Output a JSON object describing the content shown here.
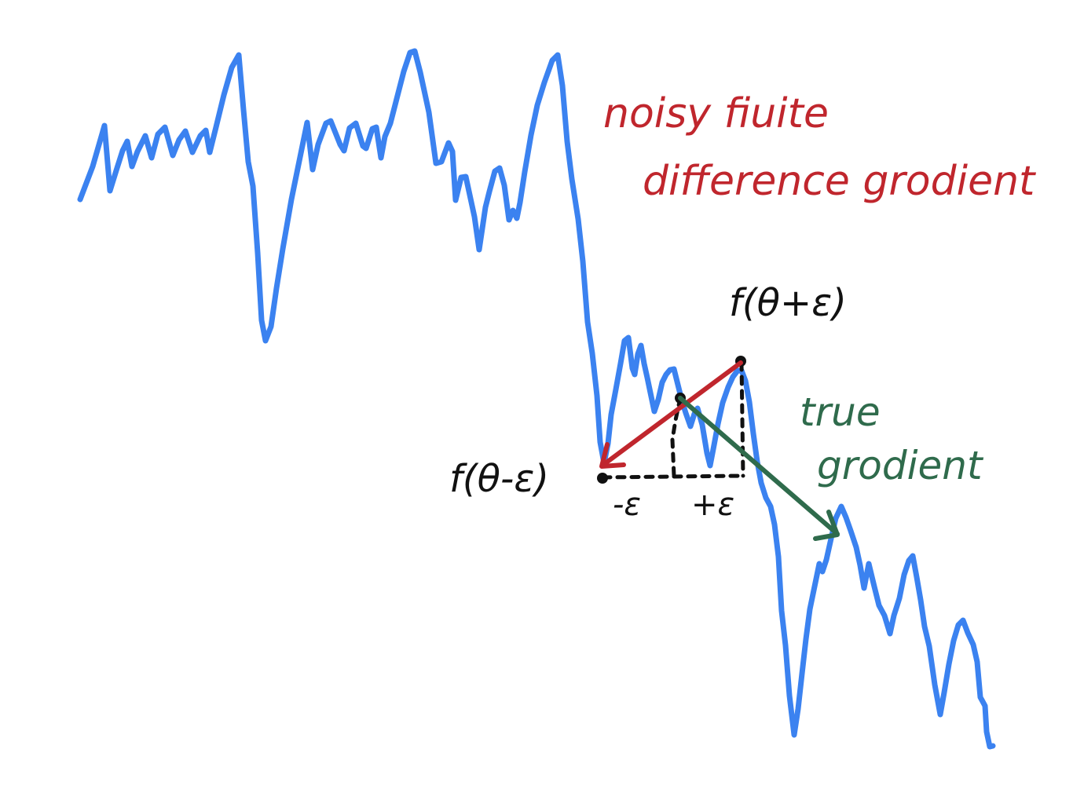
{
  "annotations": {
    "noisy_line1": "noisy fiuite",
    "noisy_line2": "difference grodient",
    "true_line1": "true",
    "true_line2": "grodient",
    "f_plus": "f(θ+ε)",
    "f_minus": "f(θ-ε)",
    "minus_eps": "-ε",
    "plus_eps": "+ε"
  },
  "colors": {
    "curve": "#3b82f0",
    "noisy_gradient": "#c0262d",
    "true_gradient": "#2f6b4c",
    "ink": "#111111"
  }
}
